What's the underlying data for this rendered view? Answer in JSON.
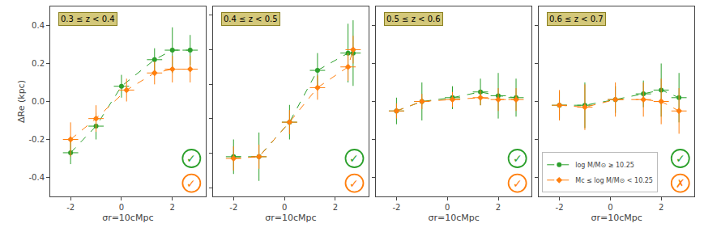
{
  "chart_data": [
    {
      "type": "scatter",
      "xlabel": "σr=10cMpc",
      "ylabel": "ΔRe (kpc)",
      "xlim": [
        -2.8,
        3.3
      ],
      "xticks": [
        -2,
        0,
        2
      ],
      "ylim": [
        -0.5,
        0.5
      ],
      "yticks": [
        -0.4,
        -0.2,
        {
          "value": 0.0,
          "label": "0.0"
        },
        0.2,
        0.4
      ],
      "grid": false,
      "annotations": [
        {
          "text": "0.3 ≤ z < 0.4",
          "color": "#d4c87a",
          "border_color": "#8a8020"
        },
        {
          "text": "✓",
          "color": "#2ca02c"
        },
        {
          "text": "✓",
          "color": "#ff7f0e"
        }
      ],
      "series": [
        {
          "color": "#2ca02c",
          "marker": "circle",
          "line_style": "dashed",
          "x": [
            -2.0,
            -1.0,
            0.0,
            1.3,
            2.0,
            2.7
          ],
          "values": [
            -0.27,
            -0.13,
            0.08,
            0.22,
            0.27,
            0.27
          ],
          "xerr": [
            0.3,
            0.3,
            0.3,
            0.3,
            0.3,
            0.3
          ],
          "yerr": [
            0.06,
            0.07,
            0.06,
            0.06,
            0.12,
            0.08
          ]
        },
        {
          "color": "#ff7f0e",
          "marker": "diamond",
          "line_style": "dashed",
          "x": [
            -2.0,
            -1.0,
            0.2,
            1.3,
            2.0,
            2.7
          ],
          "values": [
            -0.2,
            -0.09,
            0.06,
            0.15,
            0.17,
            0.17
          ],
          "xerr": [
            0.3,
            0.3,
            0.3,
            0.3,
            0.3,
            0.3
          ],
          "yerr": [
            0.09,
            0.07,
            0.06,
            0.06,
            0.07,
            0.07
          ]
        }
      ]
    },
    {
      "type": "scatter",
      "xlabel": "σr=10cMpc",
      "xlim": [
        -2.8,
        3.3
      ],
      "xticks": [
        -2,
        0,
        2
      ],
      "ylim": [
        -0.45,
        0.65
      ],
      "yticks": [
        -0.4,
        -0.2,
        0.0,
        0.2,
        0.4,
        0.6
      ],
      "tick_labels": "x",
      "grid": false,
      "annotations": [
        {
          "text": "0.4 ≤ z < 0.5",
          "color": "#d4c87a",
          "border_color": "#8a8020"
        },
        {
          "text": "✓",
          "color": "#2ca02c"
        },
        {
          "text": "✓",
          "color": "#ff7f0e"
        }
      ],
      "series": [
        {
          "color": "#2ca02c",
          "marker": "circle",
          "line_style": "dashed",
          "x": [
            -2.0,
            -1.0,
            0.2,
            1.3,
            2.5,
            2.7
          ],
          "values": [
            -0.22,
            -0.22,
            -0.02,
            0.28,
            0.38,
            0.38
          ],
          "xerr": [
            0.3,
            0.3,
            0.3,
            0.3,
            0.3,
            0.3
          ],
          "yerr": [
            0.1,
            0.14,
            0.1,
            0.1,
            0.17,
            0.19
          ]
        },
        {
          "color": "#ff7f0e",
          "marker": "diamond",
          "line_style": "dashed",
          "x": [
            -2.0,
            -1.0,
            0.2,
            1.3,
            2.5,
            2.7
          ],
          "values": [
            -0.23,
            -0.22,
            -0.02,
            0.18,
            0.3,
            0.4
          ],
          "xerr": [
            0.3,
            0.3,
            0.3,
            0.3,
            0.3,
            0.3
          ],
          "yerr": [
            0.07,
            0.07,
            0.07,
            0.07,
            0.08,
            0.08
          ]
        }
      ]
    },
    {
      "type": "scatter",
      "xlabel": "σr=10cMpc",
      "xlim": [
        -2.8,
        3.3
      ],
      "xticks": [
        -2,
        0,
        2
      ],
      "ylim": [
        -0.5,
        0.5
      ],
      "yticks": [
        -0.4,
        -0.2,
        0.0,
        0.2,
        0.4
      ],
      "tick_labels": "x",
      "grid": false,
      "annotations": [
        {
          "text": "0.5 ≤ z < 0.6",
          "color": "#d4c87a",
          "border_color": "#8a8020"
        },
        {
          "text": "✓",
          "color": "#2ca02c"
        },
        {
          "text": "✓",
          "color": "#ff7f0e"
        }
      ],
      "series": [
        {
          "color": "#2ca02c",
          "marker": "circle",
          "line_style": "dashed",
          "x": [
            -2.0,
            -1.0,
            0.2,
            1.3,
            2.0,
            2.7
          ],
          "values": [
            -0.05,
            0.0,
            0.02,
            0.05,
            0.03,
            0.02
          ],
          "xerr": [
            0.3,
            0.3,
            0.3,
            0.3,
            0.3,
            0.3
          ],
          "yerr": [
            0.07,
            0.1,
            0.06,
            0.07,
            0.12,
            0.1
          ]
        },
        {
          "color": "#ff7f0e",
          "marker": "diamond",
          "line_style": "dashed",
          "x": [
            -2.0,
            -1.0,
            0.2,
            1.3,
            2.0,
            2.7
          ],
          "values": [
            -0.05,
            0.0,
            0.01,
            0.02,
            0.01,
            0.01
          ],
          "xerr": [
            0.3,
            0.3,
            0.3,
            0.3,
            0.3,
            0.3
          ],
          "yerr": [
            0.04,
            0.04,
            0.04,
            0.04,
            0.06,
            0.06
          ]
        }
      ]
    },
    {
      "type": "scatter",
      "xlabel": "σr=10cMpc",
      "xlim": [
        -2.8,
        3.3
      ],
      "xticks": [
        -2,
        0,
        2
      ],
      "ylim": [
        -0.5,
        0.5
      ],
      "yticks": [
        -0.4,
        -0.2,
        0.0,
        0.2,
        0.4
      ],
      "tick_labels": "x",
      "grid": false,
      "legend": "lower left",
      "annotations": [
        {
          "text": "0.6 ≤ z < 0.7",
          "color": "#d4c87a",
          "border_color": "#8a8020"
        },
        {
          "text": "✓",
          "color": "#2ca02c"
        },
        {
          "text": "✗",
          "color": "#ff7f0e"
        }
      ],
      "series": [
        {
          "name": "log M/M⊙ ≥ 10.25",
          "color": "#2ca02c",
          "marker": "circle",
          "line_style": "dashed",
          "x": [
            -2.0,
            -1.0,
            0.2,
            1.3,
            2.0,
            2.7
          ],
          "values": [
            -0.02,
            -0.02,
            0.01,
            0.04,
            0.06,
            0.02
          ],
          "xerr": [
            0.3,
            0.3,
            0.3,
            0.3,
            0.3,
            0.3
          ],
          "yerr": [
            0.07,
            0.12,
            0.07,
            0.07,
            0.14,
            0.13
          ]
        },
        {
          "name": "Mc ≤ log M/M⊙ < 10.25",
          "color": "#ff7f0e",
          "marker": "diamond",
          "line_style": "dashed",
          "x": [
            -2.0,
            -1.0,
            0.2,
            1.3,
            2.0,
            2.7
          ],
          "values": [
            -0.02,
            -0.03,
            0.01,
            0.01,
            0.0,
            -0.05
          ],
          "xerr": [
            0.3,
            0.3,
            0.3,
            0.3,
            0.3,
            0.3
          ],
          "yerr": [
            0.08,
            0.12,
            0.09,
            0.09,
            0.12,
            0.12
          ]
        }
      ]
    }
  ]
}
